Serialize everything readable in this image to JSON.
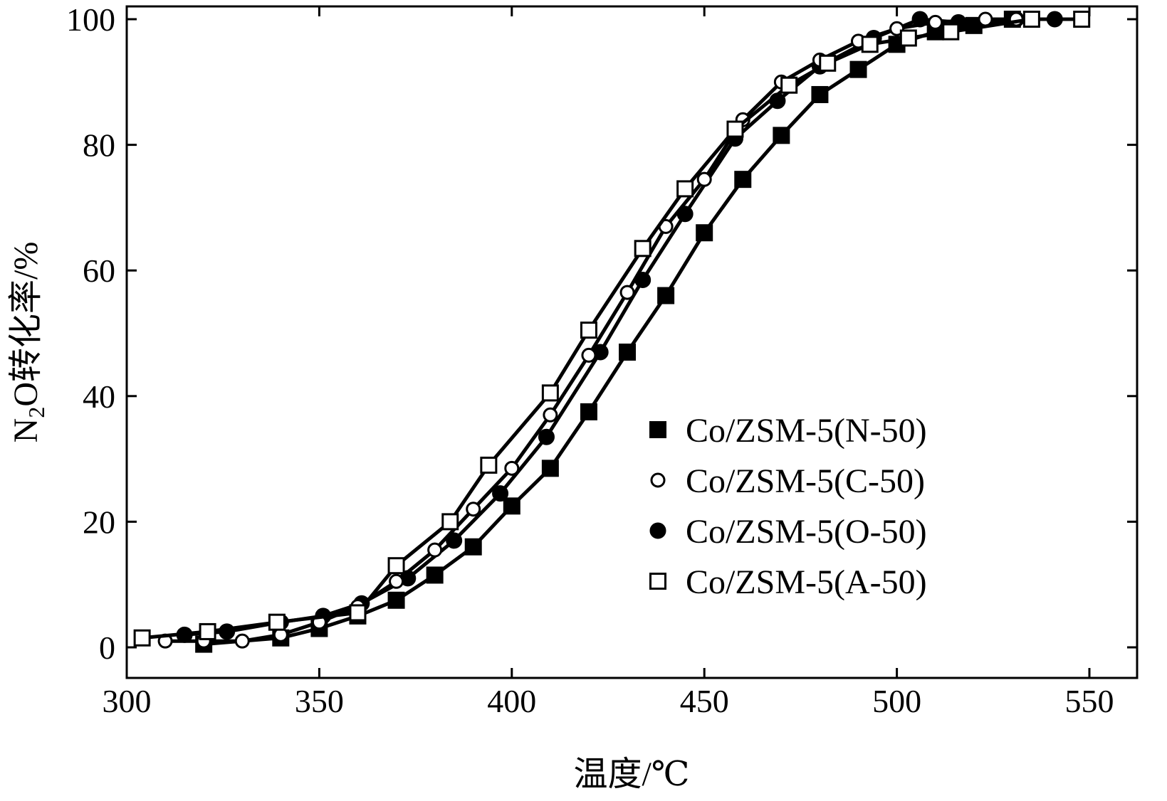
{
  "chart_data": {
    "type": "line",
    "title": "",
    "xlabel": "温度/℃",
    "ylabel": {
      "prefix": "N",
      "subscript": "2",
      "suffix": "O转化率/%"
    },
    "xlim": [
      300,
      550
    ],
    "ylim": [
      0,
      100
    ],
    "xticks": [
      300,
      350,
      400,
      450,
      500,
      550
    ],
    "yticks": [
      0,
      20,
      40,
      60,
      80,
      100
    ],
    "grid": false,
    "legend_position": "center-right",
    "colors": {
      "line": "#000000",
      "fill_solid": "#000000",
      "fill_open": "#ffffff"
    },
    "series": [
      {
        "name": "Co/ZSM-5(N-50)",
        "marker": "square-filled",
        "x": [
          320,
          340,
          350,
          360,
          370,
          380,
          390,
          400,
          410,
          420,
          430,
          440,
          450,
          460,
          470,
          480,
          490,
          500,
          510,
          520,
          530
        ],
        "y": [
          0.5,
          1.5,
          3,
          5,
          7.5,
          11.5,
          16,
          22.5,
          28.5,
          37.5,
          47,
          56,
          66,
          74.5,
          81.5,
          88,
          92,
          96,
          98,
          99,
          100
        ]
      },
      {
        "name": "Co/ZSM-5(C-50)",
        "marker": "circle-open",
        "x": [
          310,
          320,
          330,
          340,
          350,
          360,
          370,
          380,
          390,
          400,
          410,
          420,
          430,
          440,
          450,
          460,
          470,
          480,
          490,
          500,
          510,
          523,
          531
        ],
        "y": [
          1,
          1,
          1,
          2,
          4,
          6.5,
          10.5,
          15.5,
          22,
          28.5,
          37,
          46.5,
          56.5,
          67,
          74.5,
          84,
          90,
          93.5,
          96.5,
          98.5,
          99.5,
          100,
          100
        ]
      },
      {
        "name": "Co/ZSM-5(O-50)",
        "marker": "circle-filled",
        "x": [
          315,
          326,
          340,
          351,
          361,
          373,
          385,
          397,
          409,
          423,
          434,
          445,
          458,
          469,
          480,
          494,
          506,
          516,
          531,
          541
        ],
        "y": [
          2,
          2.5,
          4,
          5,
          7,
          11,
          17,
          24.5,
          33.5,
          47,
          58.5,
          69,
          81,
          87,
          92.5,
          97,
          100,
          99.5,
          100,
          100
        ]
      },
      {
        "name": "Co/ZSM-5(A-50)",
        "marker": "square-open",
        "x": [
          304,
          321,
          339,
          360,
          370,
          384,
          394,
          410,
          420,
          434,
          445,
          458,
          472,
          482,
          493,
          503,
          514,
          535,
          548
        ],
        "y": [
          1.5,
          2.5,
          4,
          5.5,
          13,
          20,
          29,
          40.5,
          50.5,
          63.5,
          73,
          82.5,
          89.5,
          93,
          96,
          97,
          98,
          100,
          100
        ]
      }
    ]
  }
}
